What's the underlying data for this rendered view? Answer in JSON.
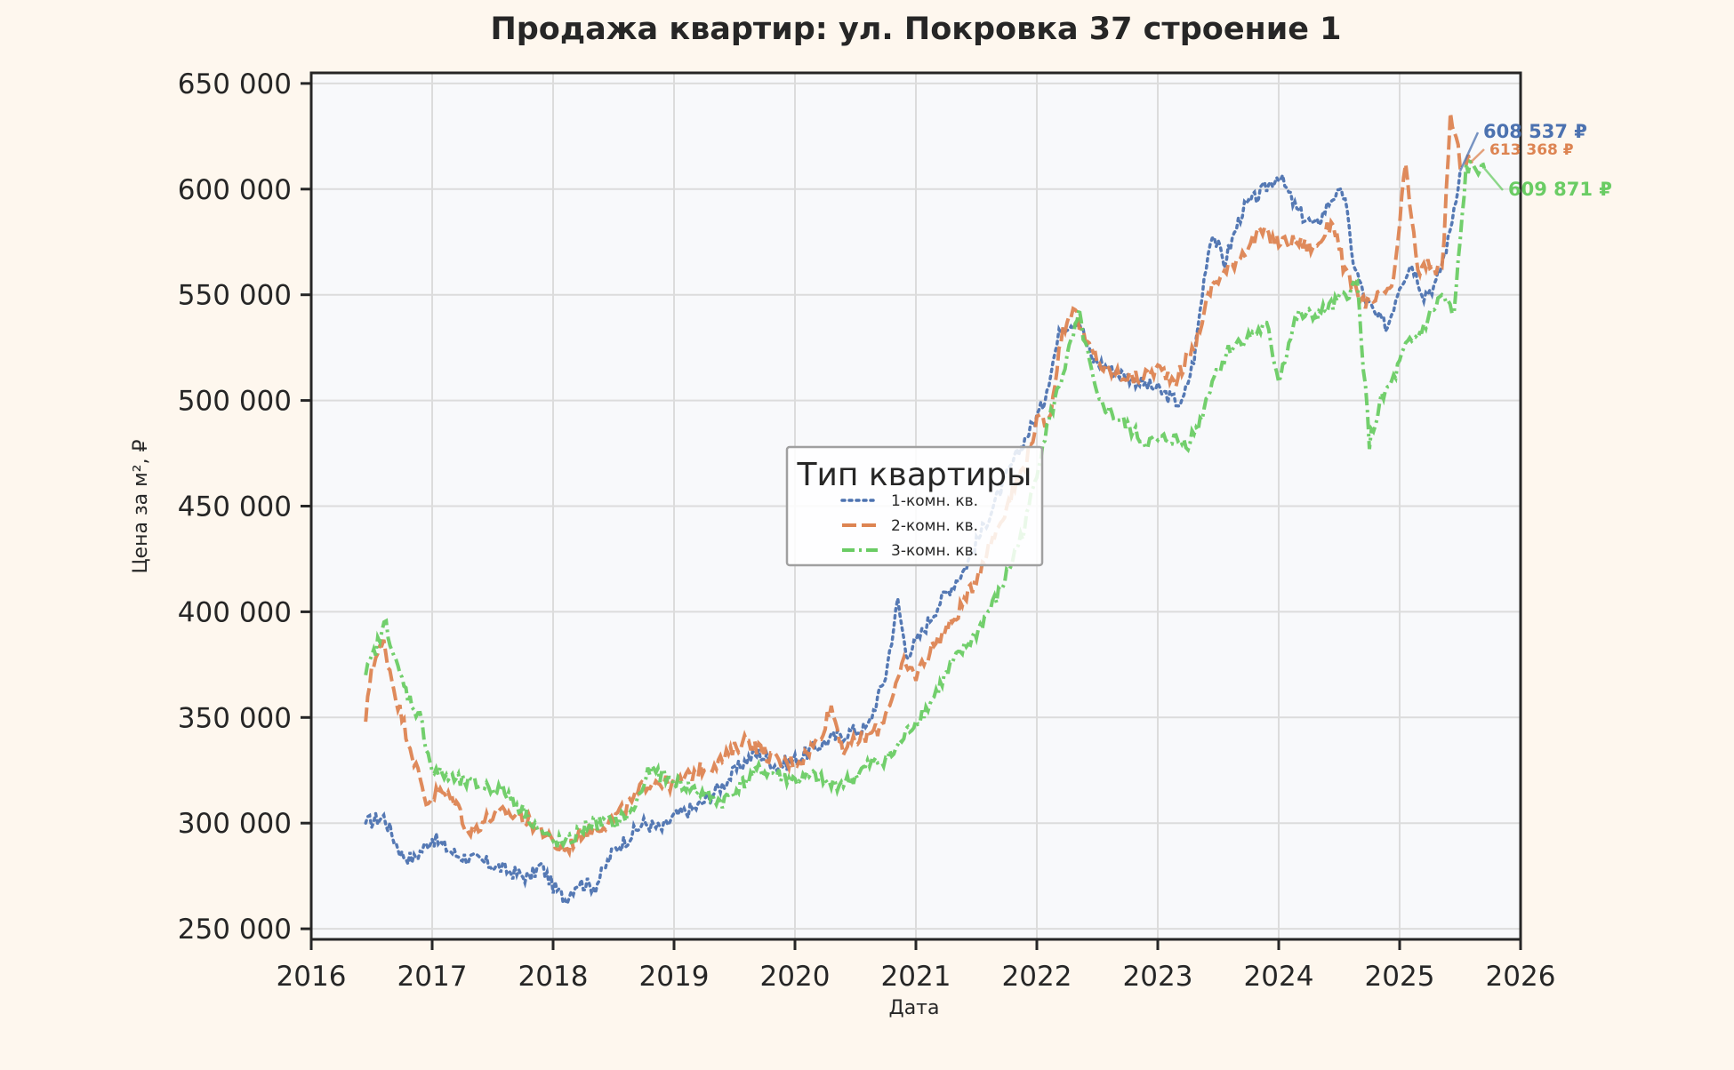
{
  "chart_data": {
    "type": "line",
    "title": "Продажа квартир: ул. Покровка 37 строение 1",
    "xlabel": "Дата",
    "ylabel": "Цена за м², ₽",
    "xlim": [
      2016.0,
      2026.0
    ],
    "ylim": [
      245000,
      655000
    ],
    "x_ticks": [
      2016,
      2017,
      2018,
      2019,
      2020,
      2021,
      2022,
      2023,
      2024,
      2025,
      2026
    ],
    "x_tick_labels": [
      "2016",
      "2017",
      "2018",
      "2019",
      "2020",
      "2021",
      "2022",
      "2023",
      "2024",
      "2025",
      "2026"
    ],
    "y_ticks": [
      250000,
      300000,
      350000,
      400000,
      450000,
      500000,
      550000,
      600000,
      650000
    ],
    "y_tick_labels": [
      "250 000",
      "300 000",
      "350 000",
      "400 000",
      "450 000",
      "500 000",
      "550 000",
      "600 000",
      "650 000"
    ],
    "grid": true,
    "legend": {
      "title": "Тип квартиры",
      "placement": "center"
    },
    "colors": {
      "background": "#fef7ee",
      "plot_background": "#f8f9fb",
      "grid": "#dcdcdc"
    },
    "series": [
      {
        "name": "1-комн. кв.",
        "color": "#4c72b0",
        "style": "dotted",
        "x": [
          2016.45,
          2016.6,
          2016.75,
          2016.85,
          2017.0,
          2017.2,
          2017.4,
          2017.6,
          2017.8,
          2017.9,
          2018.0,
          2018.1,
          2018.2,
          2018.35,
          2018.5,
          2018.6,
          2018.75,
          2018.9,
          2019.0,
          2019.2,
          2019.4,
          2019.6,
          2019.7,
          2019.85,
          2020.0,
          2020.15,
          2020.3,
          2020.45,
          2020.6,
          2020.75,
          2020.85,
          2020.92,
          2021.0,
          2021.2,
          2021.4,
          2021.6,
          2021.8,
          2021.95,
          2022.05,
          2022.2,
          2022.35,
          2022.45,
          2022.6,
          2022.8,
          2023.0,
          2023.2,
          2023.3,
          2023.4,
          2023.45,
          2023.55,
          2023.7,
          2023.85,
          2024.0,
          2024.15,
          2024.3,
          2024.45,
          2024.55,
          2024.6,
          2024.7,
          2024.8,
          2024.9,
          2025.0,
          2025.1,
          2025.2,
          2025.3,
          2025.4,
          2025.5
        ],
        "y": [
          300000,
          303000,
          285000,
          283000,
          293000,
          285000,
          282000,
          278000,
          274000,
          280000,
          270000,
          264000,
          272000,
          270000,
          287000,
          292000,
          300000,
          297000,
          303000,
          308000,
          318000,
          330000,
          333000,
          327000,
          330000,
          335000,
          340000,
          343000,
          345000,
          370000,
          405000,
          380000,
          385000,
          405000,
          420000,
          445000,
          470000,
          487000,
          498000,
          535000,
          538000,
          520000,
          515000,
          510000,
          505000,
          498000,
          520000,
          565000,
          580000,
          565000,
          590000,
          598000,
          607000,
          590000,
          582000,
          597000,
          597000,
          570000,
          550000,
          540000,
          535000,
          555000,
          565000,
          550000,
          555000,
          575000,
          608537
        ]
      },
      {
        "name": "2-комн. кв.",
        "color": "#dd8452",
        "style": "dashed",
        "x": [
          2016.45,
          2016.5,
          2016.6,
          2016.7,
          2016.75,
          2016.85,
          2016.95,
          2017.05,
          2017.2,
          2017.3,
          2017.45,
          2017.6,
          2017.75,
          2017.9,
          2018.0,
          2018.1,
          2018.25,
          2018.4,
          2018.5,
          2018.65,
          2018.75,
          2018.85,
          2019.0,
          2019.2,
          2019.4,
          2019.6,
          2019.75,
          2019.9,
          2020.05,
          2020.2,
          2020.3,
          2020.4,
          2020.55,
          2020.7,
          2020.8,
          2020.9,
          2021.0,
          2021.15,
          2021.3,
          2021.45,
          2021.6,
          2021.75,
          2021.9,
          2022.0,
          2022.1,
          2022.2,
          2022.3,
          2022.4,
          2022.55,
          2022.7,
          2022.85,
          2023.0,
          2023.15,
          2023.3,
          2023.45,
          2023.55,
          2023.7,
          2023.85,
          2024.0,
          2024.15,
          2024.3,
          2024.45,
          2024.55,
          2024.65,
          2024.75,
          2024.85,
          2024.95,
          2025.05,
          2025.15,
          2025.25,
          2025.35,
          2025.42,
          2025.5,
          2025.6
        ],
        "y": [
          348000,
          375000,
          385000,
          360000,
          350000,
          330000,
          310000,
          315000,
          310000,
          295000,
          302000,
          305000,
          302000,
          297000,
          290000,
          287000,
          296000,
          299000,
          302000,
          310000,
          318000,
          320000,
          318000,
          325000,
          330000,
          340000,
          333000,
          328000,
          330000,
          340000,
          355000,
          335000,
          340000,
          345000,
          360000,
          375000,
          370000,
          385000,
          395000,
          410000,
          430000,
          450000,
          470000,
          490000,
          490000,
          530000,
          545000,
          528000,
          515000,
          512000,
          510000,
          515000,
          510000,
          525000,
          555000,
          560000,
          570000,
          580000,
          575000,
          575000,
          572000,
          585000,
          560000,
          550000,
          545000,
          550000,
          555000,
          612000,
          560000,
          565000,
          560000,
          635000,
          613368,
          613368
        ]
      },
      {
        "name": "3-комн. кв.",
        "color": "#6acc64",
        "style": "dashdot",
        "x": [
          2016.45,
          2016.55,
          2016.62,
          2016.7,
          2016.8,
          2016.9,
          2017.0,
          2017.2,
          2017.4,
          2017.6,
          2017.8,
          2017.95,
          2018.1,
          2018.3,
          2018.5,
          2018.65,
          2018.8,
          2019.0,
          2019.2,
          2019.4,
          2019.55,
          2019.7,
          2019.85,
          2020.0,
          2020.15,
          2020.3,
          2020.45,
          2020.6,
          2020.8,
          2020.95,
          2021.1,
          2021.3,
          2021.5,
          2021.7,
          2021.9,
          2022.05,
          2022.2,
          2022.35,
          2022.5,
          2022.7,
          2022.9,
          2023.1,
          2023.25,
          2023.35,
          2023.45,
          2023.6,
          2023.75,
          2023.9,
          2024.0,
          2024.15,
          2024.3,
          2024.45,
          2024.55,
          2024.65,
          2024.75,
          2024.85,
          2024.95,
          2025.05,
          2025.15,
          2025.25,
          2025.35,
          2025.45,
          2025.55,
          2025.7
        ],
        "y": [
          370000,
          385000,
          395000,
          375000,
          360000,
          350000,
          325000,
          320000,
          318000,
          315000,
          303000,
          293000,
          290000,
          300000,
          300000,
          305000,
          325000,
          320000,
          315000,
          310000,
          318000,
          325000,
          323000,
          320000,
          322000,
          318000,
          320000,
          327000,
          332000,
          345000,
          355000,
          375000,
          390000,
          410000,
          440000,
          480000,
          510000,
          540000,
          500000,
          490000,
          480000,
          482000,
          480000,
          490000,
          510000,
          525000,
          530000,
          535000,
          510000,
          540000,
          540000,
          545000,
          550000,
          555000,
          480000,
          500000,
          510000,
          525000,
          530000,
          540000,
          550000,
          540000,
          610000,
          609871
        ]
      }
    ],
    "annotations": [
      {
        "text": "608 537 ₽",
        "series": "1-комн. кв."
      },
      {
        "text": "613 368 ₽",
        "series": "2-комн. кв."
      },
      {
        "text": "609 871 ₽",
        "series": "3-комн. кв."
      }
    ]
  }
}
